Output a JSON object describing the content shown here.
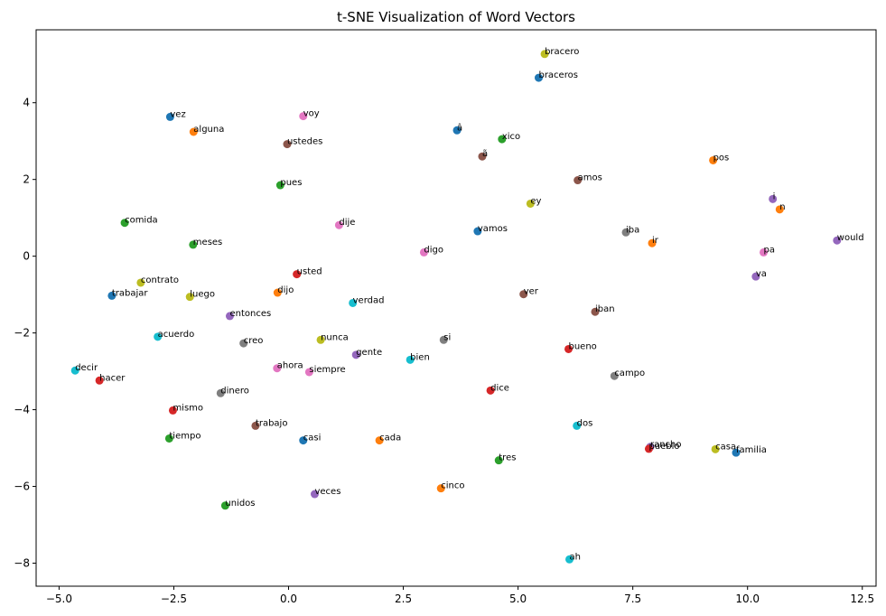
{
  "chart_data": {
    "type": "scatter",
    "title": "t-SNE Visualization of Word Vectors",
    "xlabel": "",
    "ylabel": "",
    "xlim": [
      -5.5,
      12.8
    ],
    "ylim": [
      -8.6,
      5.9
    ],
    "xticks": [
      -5.0,
      -2.5,
      0.0,
      2.5,
      5.0,
      7.5,
      10.0,
      12.5
    ],
    "yticks": [
      -8,
      -6,
      -4,
      -2,
      0,
      2,
      4
    ],
    "xtick_labels": [
      "−5.0",
      "−2.5",
      "0.0",
      "2.5",
      "5.0",
      "7.5",
      "10.0",
      "12.5"
    ],
    "ytick_labels": [
      "−8",
      "−6",
      "−4",
      "−2",
      "0",
      "2",
      "4"
    ],
    "grid": false,
    "palette": [
      "#1f77b4",
      "#ff7f0e",
      "#2ca02c",
      "#d62728",
      "#9467bd",
      "#8c564b",
      "#e377c2",
      "#7f7f7f",
      "#bcbd22",
      "#17becf"
    ],
    "points": [
      {
        "label": "bracero",
        "x": 5.58,
        "y": 5.27,
        "color": "#bcbd22"
      },
      {
        "label": "braceros",
        "x": 5.45,
        "y": 4.65,
        "color": "#1f77b4"
      },
      {
        "label": "vez",
        "x": -2.58,
        "y": 3.63,
        "color": "#1f77b4"
      },
      {
        "label": "voy",
        "x": 0.32,
        "y": 3.65,
        "color": "#e377c2"
      },
      {
        "label": "alguna",
        "x": -2.07,
        "y": 3.24,
        "color": "#ff7f0e"
      },
      {
        "label": "â",
        "x": 3.67,
        "y": 3.28,
        "color": "#1f77b4"
      },
      {
        "label": "xico",
        "x": 4.65,
        "y": 3.05,
        "color": "#2ca02c"
      },
      {
        "label": "ustedes",
        "x": -0.03,
        "y": 2.92,
        "color": "#8c564b"
      },
      {
        "label": "ã",
        "x": 4.22,
        "y": 2.6,
        "color": "#8c564b"
      },
      {
        "label": "pos",
        "x": 9.25,
        "y": 2.5,
        "color": "#ff7f0e"
      },
      {
        "label": "amos",
        "x": 6.3,
        "y": 1.98,
        "color": "#8c564b"
      },
      {
        "label": "pues",
        "x": -0.18,
        "y": 1.85,
        "color": "#2ca02c"
      },
      {
        "label": "i",
        "x": 10.55,
        "y": 1.49,
        "color": "#9467bd"
      },
      {
        "label": "ey",
        "x": 5.27,
        "y": 1.37,
        "color": "#bcbd22"
      },
      {
        "label": "n",
        "x": 10.7,
        "y": 1.22,
        "color": "#ff7f0e"
      },
      {
        "label": "comida",
        "x": -3.57,
        "y": 0.87,
        "color": "#2ca02c"
      },
      {
        "label": "dije",
        "x": 1.1,
        "y": 0.81,
        "color": "#e377c2"
      },
      {
        "label": "vamos",
        "x": 4.12,
        "y": 0.65,
        "color": "#1f77b4"
      },
      {
        "label": "iba",
        "x": 7.35,
        "y": 0.62,
        "color": "#7f7f7f"
      },
      {
        "label": "would",
        "x": 11.95,
        "y": 0.41,
        "color": "#9467bd"
      },
      {
        "label": "ir",
        "x": 7.92,
        "y": 0.34,
        "color": "#ff7f0e"
      },
      {
        "label": "meses",
        "x": -2.08,
        "y": 0.3,
        "color": "#2ca02c"
      },
      {
        "label": "digo",
        "x": 2.95,
        "y": 0.1,
        "color": "#e377c2"
      },
      {
        "label": "pa",
        "x": 10.35,
        "y": 0.1,
        "color": "#e377c2"
      },
      {
        "label": "usted",
        "x": 0.18,
        "y": -0.47,
        "color": "#d62728"
      },
      {
        "label": "va",
        "x": 10.18,
        "y": -0.53,
        "color": "#9467bd"
      },
      {
        "label": "contrato",
        "x": -3.22,
        "y": -0.69,
        "color": "#bcbd22"
      },
      {
        "label": "dijo",
        "x": -0.24,
        "y": -0.95,
        "color": "#ff7f0e"
      },
      {
        "label": "ver",
        "x": 5.12,
        "y": -0.99,
        "color": "#8c564b"
      },
      {
        "label": "trabajar",
        "x": -3.85,
        "y": -1.03,
        "color": "#1f77b4"
      },
      {
        "label": "luego",
        "x": -2.15,
        "y": -1.06,
        "color": "#bcbd22"
      },
      {
        "label": "verdad",
        "x": 1.4,
        "y": -1.22,
        "color": "#17becf"
      },
      {
        "label": "iban",
        "x": 6.68,
        "y": -1.45,
        "color": "#8c564b"
      },
      {
        "label": "entonces",
        "x": -1.28,
        "y": -1.56,
        "color": "#9467bd"
      },
      {
        "label": "acuerdo",
        "x": -2.85,
        "y": -2.1,
        "color": "#17becf"
      },
      {
        "label": "nunca",
        "x": 0.7,
        "y": -2.18,
        "color": "#bcbd22"
      },
      {
        "label": "si",
        "x": 3.38,
        "y": -2.18,
        "color": "#7f7f7f"
      },
      {
        "label": "creo",
        "x": -0.98,
        "y": -2.27,
        "color": "#7f7f7f"
      },
      {
        "label": "bueno",
        "x": 6.1,
        "y": -2.42,
        "color": "#d62728"
      },
      {
        "label": "gente",
        "x": 1.47,
        "y": -2.57,
        "color": "#9467bd"
      },
      {
        "label": "bien",
        "x": 2.65,
        "y": -2.7,
        "color": "#17becf"
      },
      {
        "label": "ahora",
        "x": -0.25,
        "y": -2.92,
        "color": "#e377c2"
      },
      {
        "label": "decir",
        "x": -4.65,
        "y": -2.98,
        "color": "#17becf"
      },
      {
        "label": "siempre",
        "x": 0.45,
        "y": -3.02,
        "color": "#e377c2"
      },
      {
        "label": "campo",
        "x": 7.1,
        "y": -3.12,
        "color": "#7f7f7f"
      },
      {
        "label": "hacer",
        "x": -4.12,
        "y": -3.24,
        "color": "#d62728"
      },
      {
        "label": "dice",
        "x": 4.4,
        "y": -3.5,
        "color": "#d62728"
      },
      {
        "label": "dinero",
        "x": -1.48,
        "y": -3.57,
        "color": "#7f7f7f"
      },
      {
        "label": "mismo",
        "x": -2.52,
        "y": -4.02,
        "color": "#d62728"
      },
      {
        "label": "dos",
        "x": 6.28,
        "y": -4.42,
        "color": "#17becf"
      },
      {
        "label": "trabajo",
        "x": -0.72,
        "y": -4.42,
        "color": "#8c564b"
      },
      {
        "label": "tiempo",
        "x": -2.6,
        "y": -4.75,
        "color": "#2ca02c"
      },
      {
        "label": "casi",
        "x": 0.32,
        "y": -4.8,
        "color": "#1f77b4"
      },
      {
        "label": "cada",
        "x": 1.98,
        "y": -4.8,
        "color": "#ff7f0e"
      },
      {
        "label": "rancho",
        "x": 7.88,
        "y": -4.97,
        "color": "#9467bd"
      },
      {
        "label": "pueblo",
        "x": 7.85,
        "y": -5.02,
        "color": "#d62728"
      },
      {
        "label": "casa",
        "x": 9.3,
        "y": -5.03,
        "color": "#bcbd22"
      },
      {
        "label": "familia",
        "x": 9.75,
        "y": -5.12,
        "color": "#1f77b4"
      },
      {
        "label": "tres",
        "x": 4.58,
        "y": -5.32,
        "color": "#2ca02c"
      },
      {
        "label": "cinco",
        "x": 3.32,
        "y": -6.05,
        "color": "#ff7f0e"
      },
      {
        "label": "veces",
        "x": 0.57,
        "y": -6.2,
        "color": "#9467bd"
      },
      {
        "label": "unidos",
        "x": -1.38,
        "y": -6.5,
        "color": "#2ca02c"
      },
      {
        "label": "ah",
        "x": 6.12,
        "y": -7.9,
        "color": "#17becf"
      }
    ]
  }
}
